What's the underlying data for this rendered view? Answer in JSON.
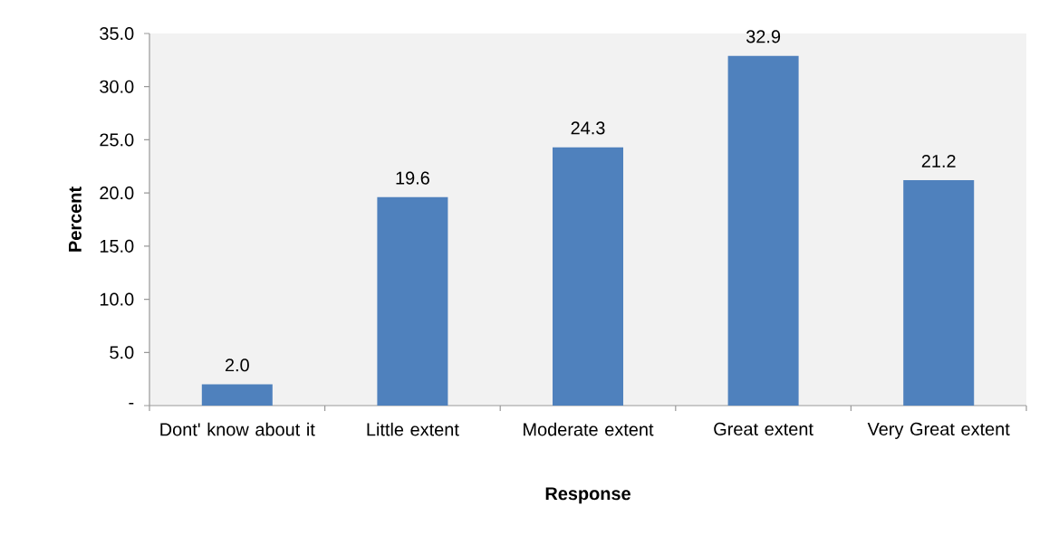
{
  "chart_data": {
    "type": "bar",
    "categories": [
      "Dont' know about it",
      "Little extent",
      "Moderate extent",
      "Great extent",
      "Very Great extent"
    ],
    "values": [
      2.0,
      19.6,
      24.3,
      32.9,
      21.2
    ],
    "value_labels": [
      "2.0",
      "19.6",
      "24.3",
      "32.9",
      "21.2"
    ],
    "color": "#4f81bd",
    "xlabel": "Response",
    "ylabel": "Percent",
    "ylim": [
      0,
      35
    ],
    "yticks": [
      {
        "value": 0,
        "label": "-"
      },
      {
        "value": 5,
        "label": "5.0"
      },
      {
        "value": 10,
        "label": "10.0"
      },
      {
        "value": 15,
        "label": "15.0"
      },
      {
        "value": 20,
        "label": "20.0"
      },
      {
        "value": 25,
        "label": "25.0"
      },
      {
        "value": 30,
        "label": "30.0"
      },
      {
        "value": 35,
        "label": "35.0"
      }
    ]
  }
}
